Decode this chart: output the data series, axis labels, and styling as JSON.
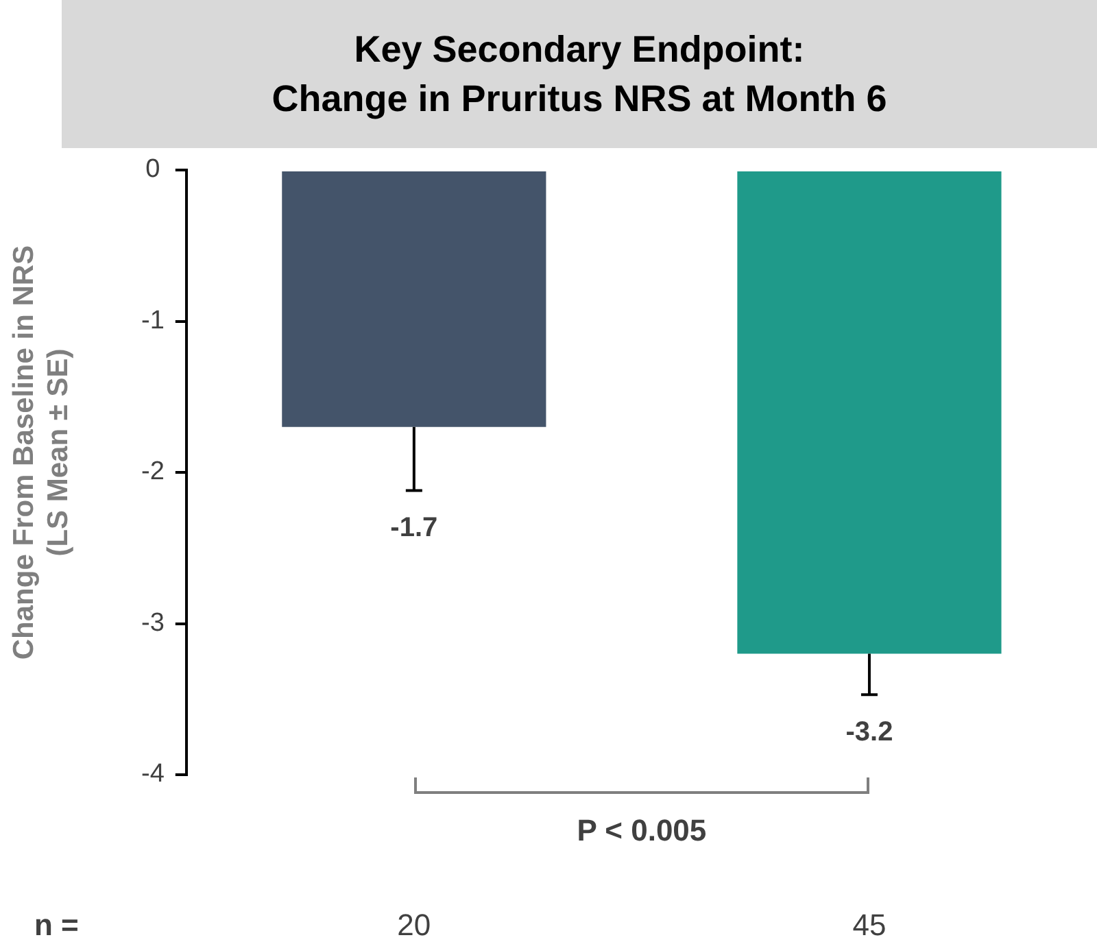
{
  "chart_data": {
    "type": "bar",
    "title": "Key Secondary Endpoint:\nChange in Pruritus NRS at Month 6",
    "ylabel": "Change From Baseline in NRS (LS Mean ± SE)",
    "categories": [
      "20",
      "45"
    ],
    "values": [
      -1.7,
      -3.2
    ],
    "colors": [
      "#44546a",
      "#1f9a8a"
    ],
    "errors": [
      0.42,
      0.27
    ],
    "data_labels": true,
    "ylim": [
      -4,
      0
    ],
    "yticks": [
      {
        "value": 0,
        "label": "0"
      },
      {
        "value": -1,
        "label": "-1"
      },
      {
        "value": -2,
        "label": "-2"
      },
      {
        "value": -3,
        "label": "-3"
      },
      {
        "value": -4,
        "label": "-4"
      }
    ],
    "grid": false,
    "legend": false,
    "annotations": [
      "n =",
      "P < 0.005"
    ]
  }
}
